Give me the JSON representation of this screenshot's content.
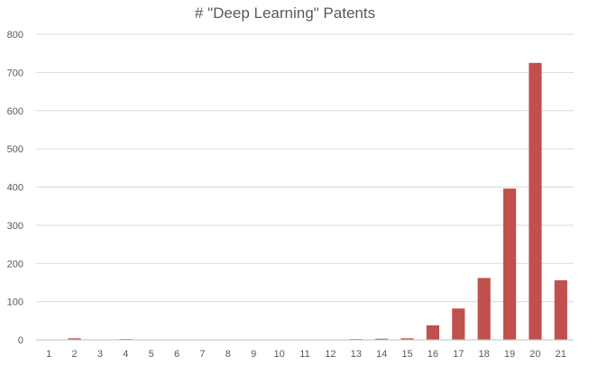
{
  "chart_data": {
    "type": "bar",
    "title": "# \"Deep Learning\" Patents",
    "xlabel": "",
    "ylabel": "",
    "categories": [
      "1",
      "2",
      "3",
      "4",
      "5",
      "6",
      "7",
      "8",
      "9",
      "10",
      "11",
      "12",
      "13",
      "14",
      "15",
      "16",
      "17",
      "18",
      "19",
      "20",
      "21"
    ],
    "values": [
      1,
      4,
      1,
      2,
      0,
      1,
      1,
      0,
      0,
      0,
      1,
      1,
      2,
      3,
      4,
      38,
      82,
      162,
      396,
      725,
      156
    ],
    "ylim": [
      0,
      800
    ],
    "yticks": [
      0,
      100,
      200,
      300,
      400,
      500,
      600,
      700,
      800
    ],
    "grid": true,
    "legend": "none",
    "colors": {
      "bar": "#c0504d",
      "grid": "#d9d9d9",
      "text": "#595959"
    }
  }
}
